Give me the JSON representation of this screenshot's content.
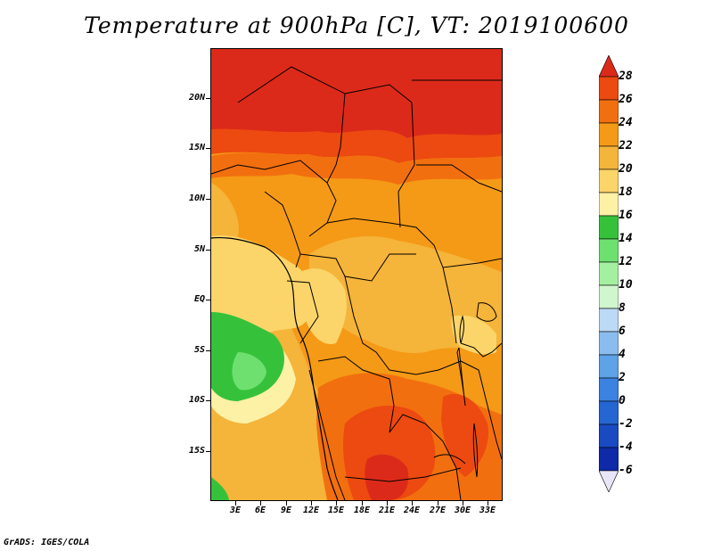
{
  "title": "Temperature at 900hPa [C], VT: 2019100600",
  "credit": "GrADS: IGES/COLA",
  "lat_labels": [
    "20N",
    "15N",
    "10N",
    "5N",
    "EQ",
    "5S",
    "10S",
    "15S"
  ],
  "lon_labels": [
    "3E",
    "6E",
    "9E",
    "12E",
    "15E",
    "18E",
    "21E",
    "24E",
    "27E",
    "30E",
    "33E"
  ],
  "colorbar": {
    "labels": [
      "28",
      "26",
      "24",
      "22",
      "20",
      "18",
      "16",
      "14",
      "12",
      "10",
      "8",
      "6",
      "4",
      "2",
      "0",
      "-2",
      "-4",
      "-6"
    ],
    "colors_top_to_bottom": [
      "#dc2a1a",
      "#ec4a10",
      "#f26f0f",
      "#f59a16",
      "#f5b43a",
      "#fbd56a",
      "#fdf1a6",
      "#35c23a",
      "#6ee070",
      "#a4f0a1",
      "#d0f6ce",
      "#bcdaf6",
      "#89bdf0",
      "#5ea2e8",
      "#3b82e1",
      "#2466d2",
      "#1a4ac2",
      "#0e2aa8",
      "#07148a"
    ],
    "low_end_color": "#e8e6f6"
  }
}
